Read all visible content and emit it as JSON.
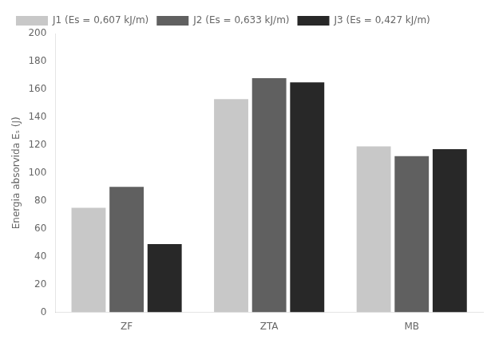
{
  "chart_data": {
    "type": "bar",
    "categories": [
      "ZF",
      "ZTA",
      "MB"
    ],
    "series": [
      {
        "name": "J1 (Es = 0,607 kJ/m)",
        "color": "#c8c8c8",
        "values": [
          75,
          153,
          119
        ]
      },
      {
        "name": "J2 (Es = 0,633 kJ/m)",
        "color": "#606060",
        "values": [
          90,
          168,
          112
        ]
      },
      {
        "name": "J3 (Es = 0,427 kJ/m)",
        "color": "#282828",
        "values": [
          49,
          165,
          117
        ]
      }
    ],
    "y_label": "Energia absorvida Eₛ (J)",
    "ylim": [
      0,
      200
    ],
    "yticks": [
      0,
      20,
      40,
      60,
      80,
      100,
      120,
      140,
      160,
      180,
      200
    ],
    "grid": false,
    "legend": "upper left"
  }
}
